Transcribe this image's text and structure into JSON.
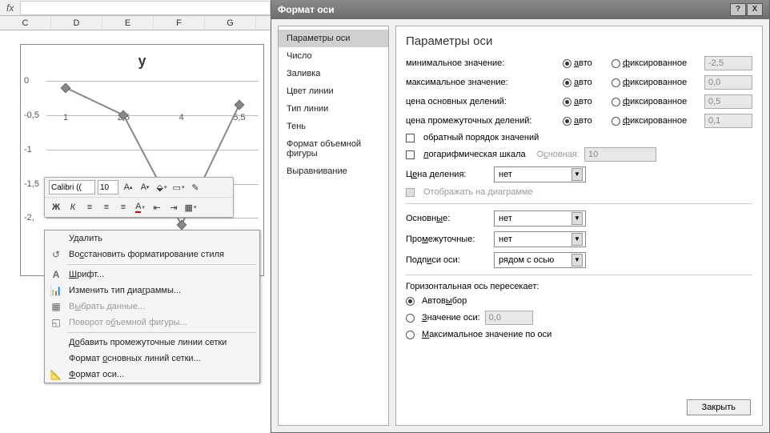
{
  "formula_bar": {
    "fx": "fx"
  },
  "columns": [
    "C",
    "D",
    "E",
    "F",
    "G"
  ],
  "chart": {
    "title": "y",
    "type": "line",
    "x_values": [
      1,
      2.5,
      4,
      5.5
    ],
    "x_labels": [
      "1",
      "2,5",
      "4",
      "5,5"
    ],
    "y_values": [
      -0.1,
      -0.5,
      -2.1,
      -0.35
    ],
    "y_ticks": [
      0,
      -0.5,
      -1,
      -1.5,
      -2
    ],
    "y_tick_labels": [
      "0",
      "-0,5",
      "-1",
      "-1,5",
      "-2,"
    ],
    "ylim": [
      -2.1,
      0
    ],
    "xlim": [
      0.5,
      6
    ],
    "line_color": "#888888",
    "marker_color": "#888888",
    "grid_color": "#bbbbbb",
    "background_color": "#ffffff",
    "title_fontsize": 18,
    "label_fontsize": 11
  },
  "mini_toolbar": {
    "font_name": "Calibri ((",
    "font_size": "10",
    "bold": "Ж",
    "italic": "К",
    "align_left": "≡",
    "align_center": "≡",
    "align_right": "≡"
  },
  "context_menu": {
    "delete": "Удалить",
    "reset_style": "Восстановить форматирование стиля",
    "font": "Шрифт...",
    "change_chart_type": "Изменить тип диаграммы...",
    "select_data": "Выбрать данные...",
    "rotate_3d": "Поворот объемной фигуры...",
    "add_minor_grid": "Добавить промежуточные линии сетки",
    "format_major_grid": "Формат основных линий сетки...",
    "format_axis": "Формат оси..."
  },
  "dialog": {
    "title": "Формат оси",
    "help": "?",
    "close_x": "X",
    "sidebar": [
      "Параметры оси",
      "Число",
      "Заливка",
      "Цвет линии",
      "Тип линии",
      "Тень",
      "Формат объемной фигуры",
      "Выравнивание"
    ],
    "sidebar_selected": 0,
    "panel_title": "Параметры оси",
    "rows": {
      "min": {
        "label": "минимальное значение:",
        "r1": "авто",
        "r2": "фиксированное",
        "val": "-2,5",
        "sel": "auto"
      },
      "max": {
        "label": "максимальное значение:",
        "r1": "авто",
        "r2": "фиксированное",
        "val": "0,0",
        "sel": "auto"
      },
      "major": {
        "label": "цена основных делений:",
        "r1": "авто",
        "r2": "фиксированное",
        "val": "0,5",
        "sel": "auto"
      },
      "minor": {
        "label": "цена промежуточных делений:",
        "r1": "авто",
        "r2": "фиксированное",
        "val": "0,1",
        "sel": "auto"
      }
    },
    "reverse": "обратный порядок значений",
    "log_scale": "логарифмическая шкала",
    "log_base_label": "Основная:",
    "log_base": "10",
    "display_unit_label": "Цена деления:",
    "display_unit": "нет",
    "show_on_chart": "Отображать на диаграмме",
    "major_ticks_label": "Основные:",
    "major_ticks": "нет",
    "minor_ticks_label": "Промежуточные:",
    "minor_ticks": "нет",
    "axis_labels_label": "Подписи оси:",
    "axis_labels": "рядом с осью",
    "cross_label": "Горизонтальная ось пересекает:",
    "cross_auto": "Автовыбор",
    "cross_value": "Значение оси:",
    "cross_value_val": "0,0",
    "cross_max": "Максимальное значение по оси",
    "cross_sel": "auto",
    "close_button": "Закрыть"
  }
}
